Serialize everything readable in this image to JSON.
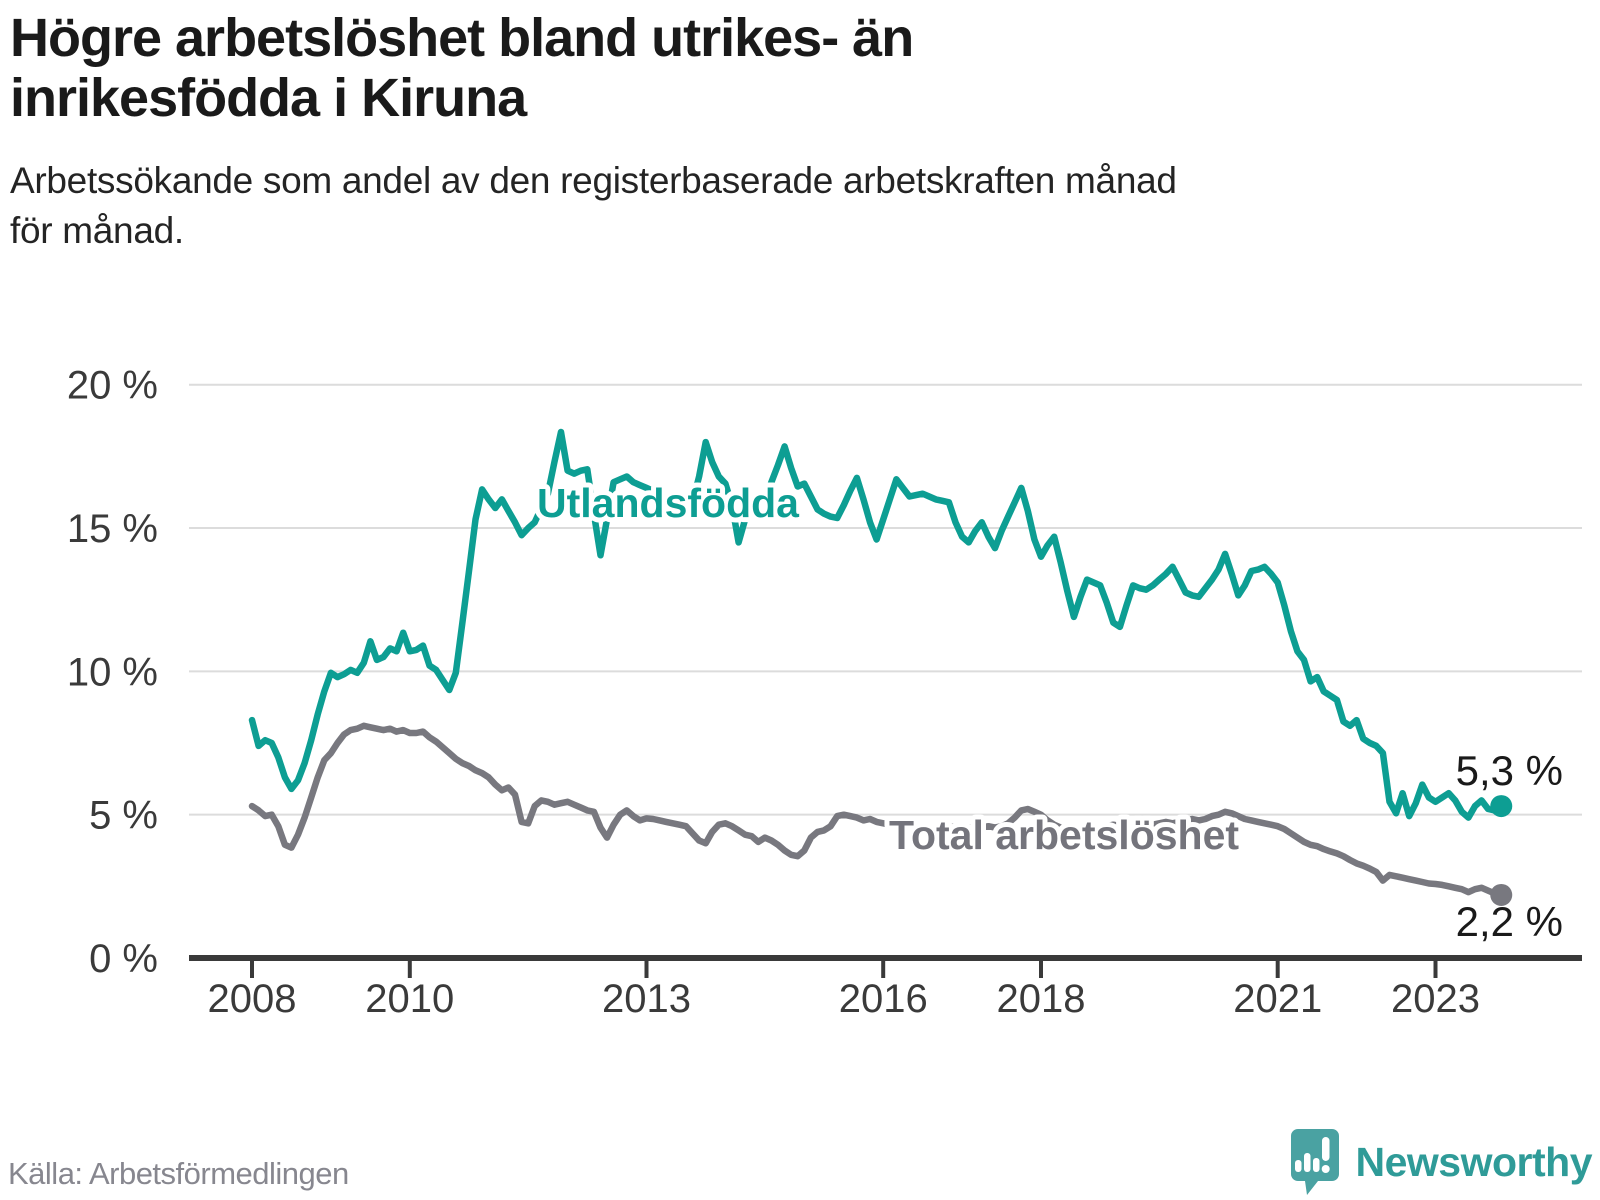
{
  "header": {
    "title_lines": [
      "Högre arbetslöshet bland utrikes- än",
      "inrikesfödda i Kiruna"
    ],
    "subtitle_lines": [
      "Arbetssökande som andel av den registerbaserade arbetskraften månad",
      "för månad."
    ]
  },
  "footer": {
    "source": "Källa: Arbetsförmedlingen",
    "brand_name": "Newsworthy"
  },
  "colors": {
    "foreign_born_line": "#0d9e93",
    "total_line": "#78787f",
    "grid": "#dcdcdc",
    "axis": "#3a3a3a",
    "tick_label": "#3a3a3a",
    "end_label": "#1a1a1a",
    "total_label": "#74747c",
    "source_text": "#87878f",
    "brand_teal": "#4aa2a2"
  },
  "chart_data": {
    "type": "line",
    "title": "Högre arbetslöshet bland utrikes- än inrikesfödda i Kiruna",
    "subtitle": "Arbetssökande som andel av den registerbaserade arbetskraften månad för månad.",
    "xlabel": "",
    "ylabel": "",
    "ylim": [
      0,
      20
    ],
    "xlim": [
      2008,
      2024
    ],
    "grid": "horizontal",
    "legend_position": "inline-labels",
    "y_ticks": [
      {
        "value": 20,
        "label": "20 %"
      },
      {
        "value": 15,
        "label": "15 %"
      },
      {
        "value": 10,
        "label": "10 %"
      },
      {
        "value": 5,
        "label": "5 %"
      },
      {
        "value": 0,
        "label": "0 %"
      }
    ],
    "x_ticks": [
      {
        "value": 2008,
        "label": "2008"
      },
      {
        "value": 2010,
        "label": "2010"
      },
      {
        "value": 2013,
        "label": "2013"
      },
      {
        "value": 2016,
        "label": "2016"
      },
      {
        "value": 2018,
        "label": "2018"
      },
      {
        "value": 2021,
        "label": "2021"
      },
      {
        "value": 2023,
        "label": "2023"
      }
    ],
    "cadence": "monthly",
    "start_year": 2008,
    "series": [
      {
        "name": "Utlandsfödda",
        "end_label": "5,3 %",
        "end_value": 5.3,
        "color": "#0d9e93",
        "values": [
          8.3,
          7.4,
          7.6,
          7.5,
          7.0,
          6.3,
          5.9,
          6.2,
          6.8,
          7.6,
          8.5,
          9.3,
          9.95,
          9.8,
          9.9,
          10.05,
          9.95,
          10.3,
          11.05,
          10.4,
          10.5,
          10.8,
          10.7,
          11.35,
          10.7,
          10.75,
          10.9,
          10.2,
          10.05,
          9.7,
          9.35,
          9.95,
          11.7,
          13.5,
          15.3,
          16.35,
          16.0,
          15.7,
          16.0,
          15.6,
          15.2,
          14.75,
          15.0,
          15.2,
          15.7,
          16.2,
          17.3,
          18.35,
          17.0,
          16.9,
          17.0,
          17.05,
          15.5,
          14.05,
          15.3,
          16.6,
          16.7,
          16.8,
          16.6,
          16.5,
          16.4,
          16.3,
          16.2,
          16.1,
          16.1,
          16.1,
          15.6,
          15.9,
          16.8,
          18.0,
          17.3,
          16.8,
          16.55,
          15.8,
          14.5,
          15.3,
          16.1,
          16.05,
          16.0,
          16.6,
          17.2,
          17.85,
          17.1,
          16.45,
          16.55,
          16.1,
          15.65,
          15.5,
          15.4,
          15.35,
          15.8,
          16.3,
          16.75,
          16.0,
          15.2,
          14.6,
          15.3,
          16.0,
          16.7,
          16.4,
          16.1,
          16.15,
          16.2,
          16.1,
          16.0,
          15.95,
          15.9,
          15.2,
          14.7,
          14.5,
          14.9,
          15.2,
          14.7,
          14.3,
          14.9,
          15.4,
          15.9,
          16.4,
          15.6,
          14.6,
          14.0,
          14.4,
          14.7,
          13.8,
          12.8,
          11.9,
          12.6,
          13.2,
          13.1,
          13.0,
          12.4,
          11.7,
          11.55,
          12.3,
          13.0,
          12.9,
          12.85,
          13.0,
          13.2,
          13.4,
          13.65,
          13.2,
          12.75,
          12.65,
          12.6,
          12.9,
          13.2,
          13.55,
          14.1,
          13.4,
          12.65,
          13.0,
          13.5,
          13.55,
          13.65,
          13.4,
          13.1,
          12.3,
          11.4,
          10.7,
          10.4,
          9.65,
          9.8,
          9.3,
          9.15,
          9.0,
          8.25,
          8.1,
          8.3,
          7.65,
          7.5,
          7.4,
          7.15,
          5.45,
          5.05,
          5.75,
          4.95,
          5.4,
          6.05,
          5.6,
          5.45,
          5.6,
          5.75,
          5.5,
          5.1,
          4.9,
          5.3,
          5.5,
          5.2,
          5.15,
          5.3
        ]
      },
      {
        "name": "Total arbetslöshet",
        "end_label": "2,2 %",
        "end_value": 2.2,
        "color": "#78787f",
        "values": [
          5.3,
          5.15,
          4.95,
          5.0,
          4.6,
          3.95,
          3.85,
          4.3,
          4.9,
          5.6,
          6.3,
          6.9,
          7.15,
          7.5,
          7.8,
          7.95,
          8.0,
          8.1,
          8.05,
          8.0,
          7.95,
          8.0,
          7.9,
          7.95,
          7.85,
          7.85,
          7.9,
          7.7,
          7.55,
          7.35,
          7.15,
          6.95,
          6.8,
          6.7,
          6.55,
          6.45,
          6.3,
          6.05,
          5.85,
          5.95,
          5.7,
          4.75,
          4.7,
          5.3,
          5.5,
          5.45,
          5.35,
          5.4,
          5.45,
          5.35,
          5.25,
          5.15,
          5.1,
          4.55,
          4.2,
          4.65,
          5.0,
          5.15,
          4.95,
          4.8,
          4.87,
          4.85,
          4.8,
          4.75,
          4.7,
          4.65,
          4.6,
          4.35,
          4.1,
          4.0,
          4.4,
          4.65,
          4.7,
          4.6,
          4.45,
          4.3,
          4.25,
          4.05,
          4.2,
          4.1,
          3.95,
          3.75,
          3.6,
          3.55,
          3.75,
          4.2,
          4.4,
          4.45,
          4.6,
          4.95,
          5.0,
          4.95,
          4.9,
          4.8,
          4.85,
          4.75,
          4.7,
          4.65,
          4.6,
          4.55,
          4.6,
          4.5,
          4.45,
          4.5,
          4.55,
          4.6,
          4.6,
          4.55,
          4.6,
          4.55,
          4.5,
          4.55,
          4.6,
          4.55,
          4.6,
          4.7,
          4.9,
          5.15,
          5.2,
          5.1,
          5.0,
          4.8,
          4.65,
          4.55,
          4.5,
          4.45,
          4.5,
          4.55,
          4.5,
          4.55,
          4.6,
          4.65,
          4.6,
          4.65,
          4.7,
          4.65,
          4.6,
          4.65,
          4.7,
          4.75,
          4.7,
          4.75,
          4.8,
          4.85,
          4.8,
          4.85,
          4.95,
          5.0,
          5.1,
          5.05,
          4.95,
          4.85,
          4.8,
          4.75,
          4.7,
          4.65,
          4.6,
          4.5,
          4.35,
          4.2,
          4.05,
          3.95,
          3.9,
          3.8,
          3.72,
          3.65,
          3.55,
          3.42,
          3.3,
          3.22,
          3.12,
          3.0,
          2.7,
          2.9,
          2.85,
          2.8,
          2.75,
          2.7,
          2.65,
          2.6,
          2.58,
          2.55,
          2.5,
          2.45,
          2.4,
          2.3,
          2.4,
          2.45,
          2.35,
          2.25,
          2.2
        ]
      }
    ]
  }
}
